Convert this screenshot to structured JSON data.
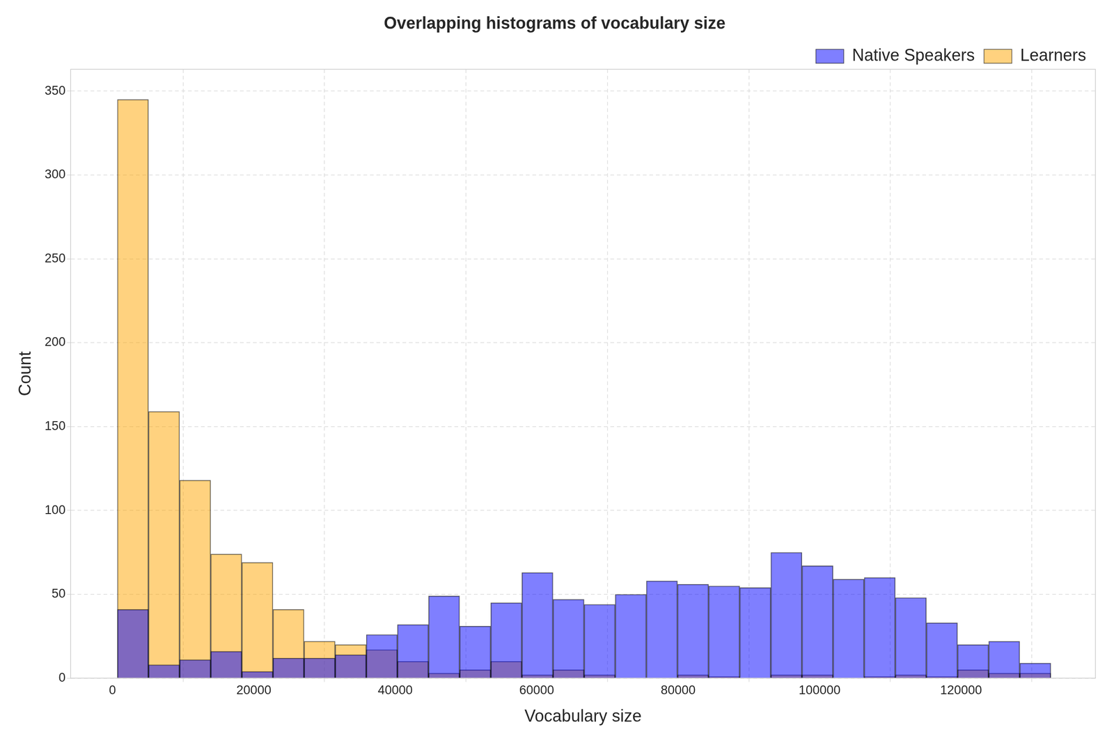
{
  "chart_data": {
    "type": "histogram",
    "title": "Overlapping histograms of vocabulary size",
    "x_label": "Vocabulary size",
    "y_label": "Count",
    "bins": [
      700,
      5100,
      9500,
      13900,
      18300,
      22700,
      27100,
      31500,
      35900,
      40300,
      44700,
      49100,
      53500,
      57900,
      62300,
      66700,
      71100,
      75500,
      79900,
      84300,
      88700,
      93100,
      97500,
      101900,
      106300,
      110700,
      115100,
      119500,
      123900,
      128300,
      132700
    ],
    "series": [
      {
        "name": "Native Speakers",
        "color": "#0000ff",
        "values": [
          41,
          8,
          11,
          16,
          4,
          12,
          12,
          14,
          26,
          32,
          49,
          31,
          45,
          63,
          47,
          44,
          50,
          58,
          56,
          55,
          54,
          75,
          67,
          59,
          60,
          48,
          33,
          20,
          22,
          9
        ]
      },
      {
        "name": "Learners",
        "color": "#ffa500",
        "values": [
          345,
          159,
          118,
          74,
          69,
          41,
          22,
          20,
          17,
          10,
          3,
          5,
          10,
          2,
          5,
          2,
          0,
          0,
          2,
          1,
          0,
          2,
          2,
          0,
          1,
          2,
          1,
          5,
          3,
          3
        ]
      }
    ],
    "xlim": [
      -5900,
      139000
    ],
    "xticks": [
      0,
      20000,
      40000,
      60000,
      80000,
      100000,
      120000
    ],
    "ylim": [
      0,
      363
    ],
    "yticks": [
      0,
      50,
      100,
      150,
      200,
      250,
      300,
      350
    ],
    "grid": true,
    "legend": "upper right"
  }
}
